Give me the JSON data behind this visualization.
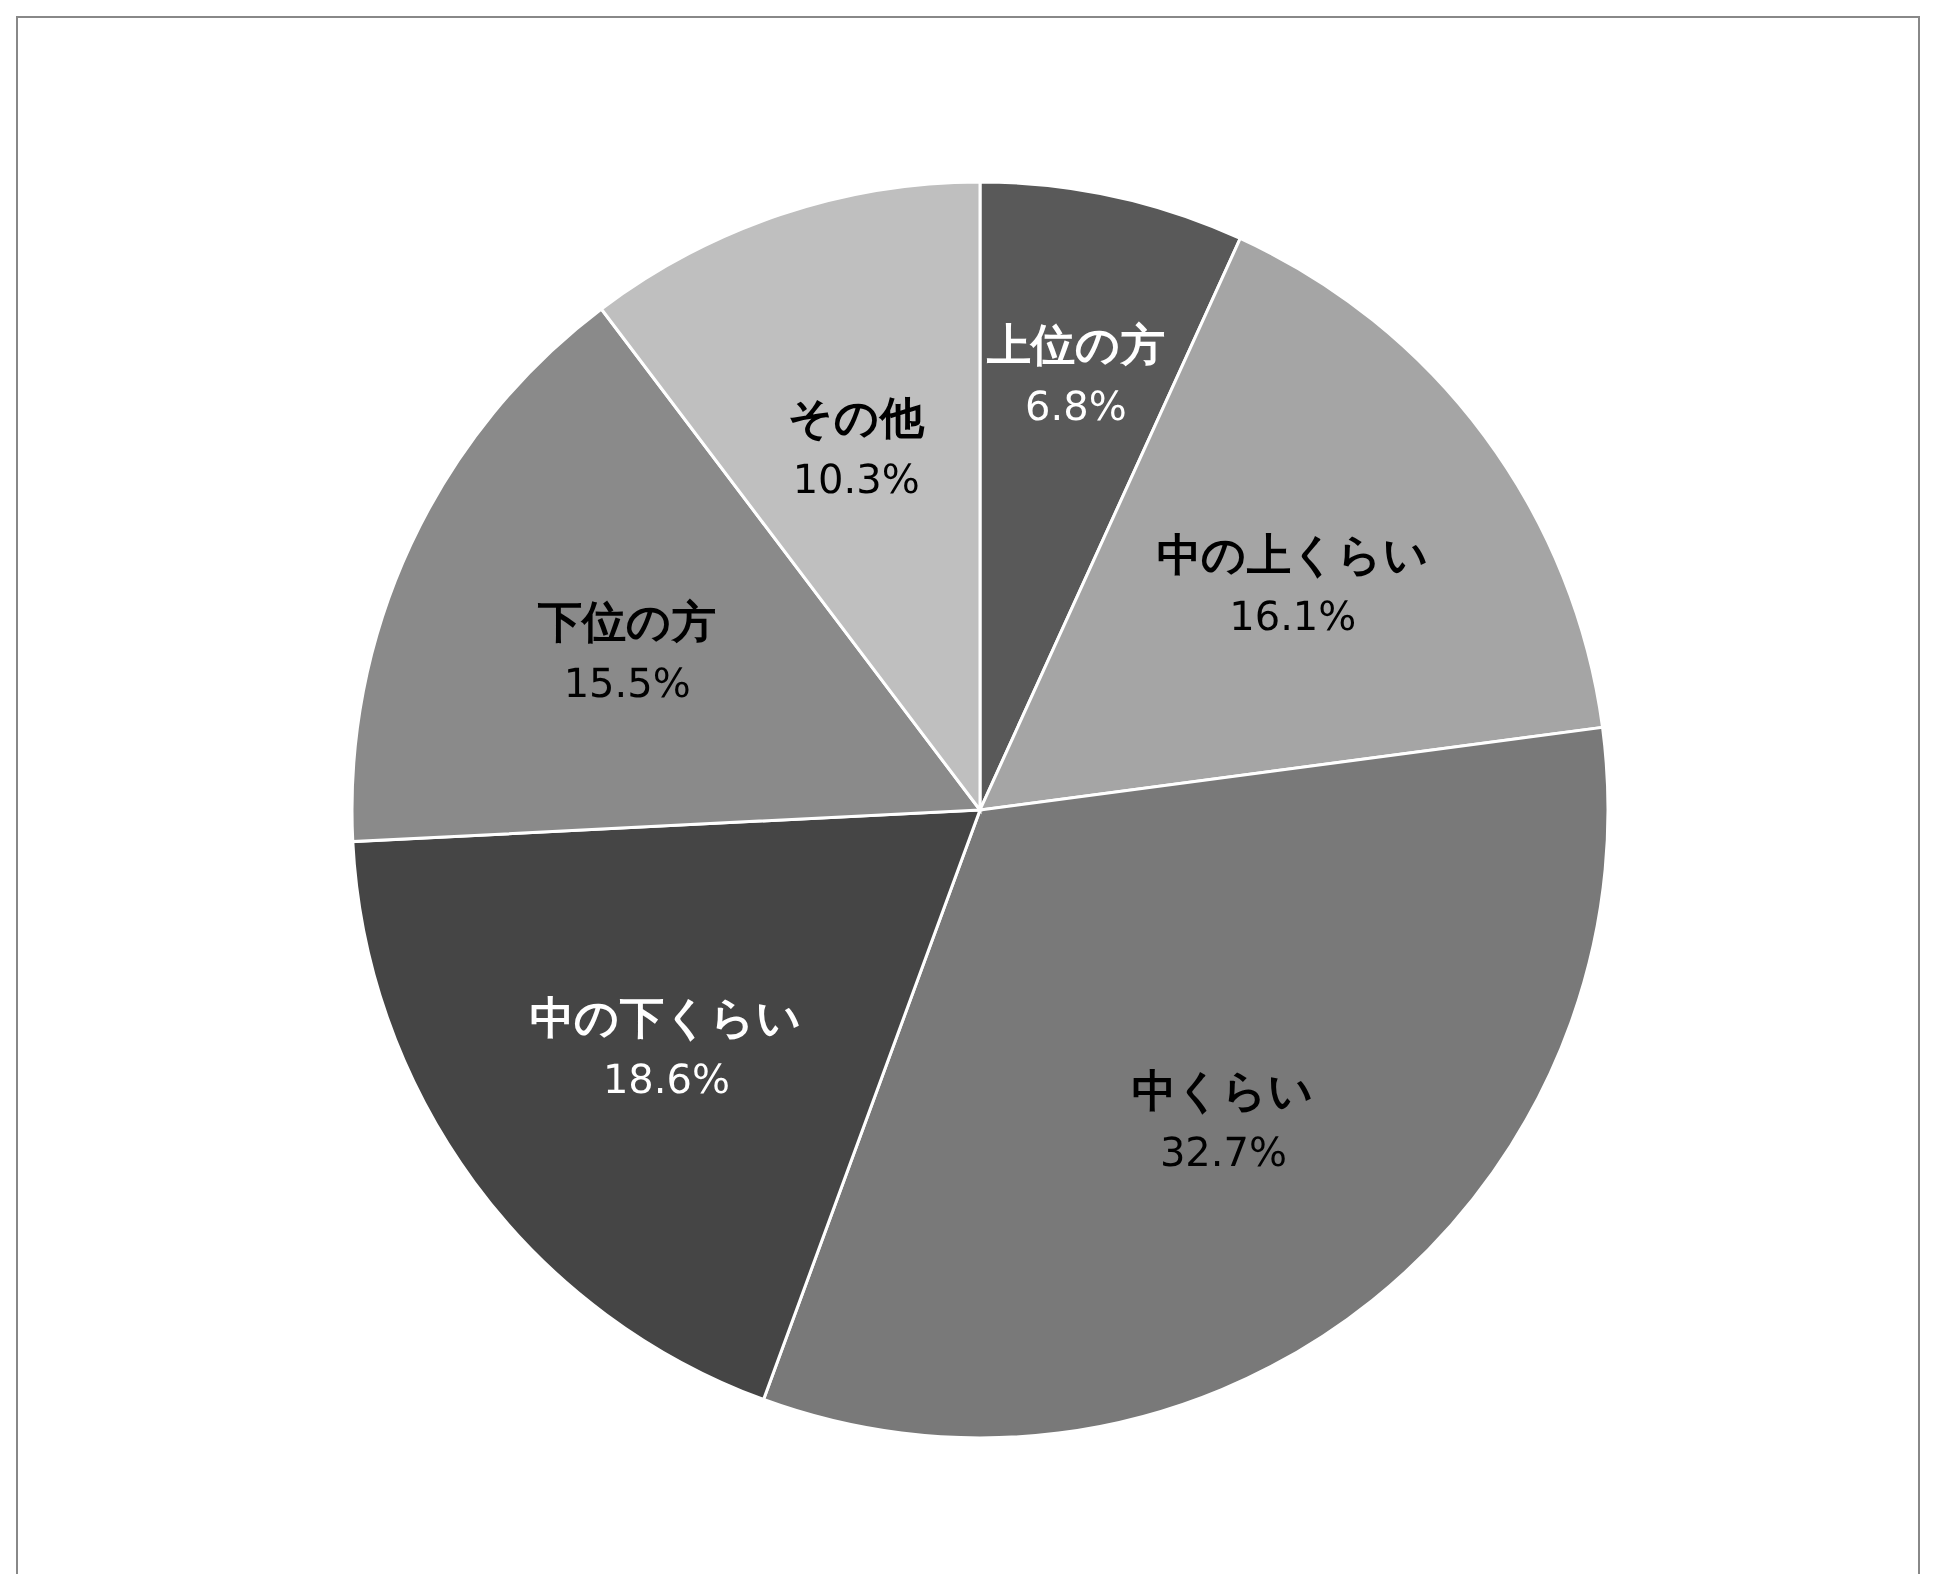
{
  "chart_data": {
    "type": "pie",
    "categories": [
      "上位の方",
      "中の上くらい",
      "中くらい",
      "中の下くらい",
      "下位の方",
      "その他"
    ],
    "values": [
      6.8,
      16.1,
      32.7,
      18.6,
      15.5,
      10.3
    ],
    "value_labels": [
      "6.8%",
      "16.1%",
      "32.7%",
      "18.6%",
      "15.5%",
      "10.3%"
    ],
    "colors": [
      "#595959",
      "#a5a5a5",
      "#797979",
      "#454545",
      "#8a8a8a",
      "#bfbfbf"
    ],
    "data_labels": true
  }
}
